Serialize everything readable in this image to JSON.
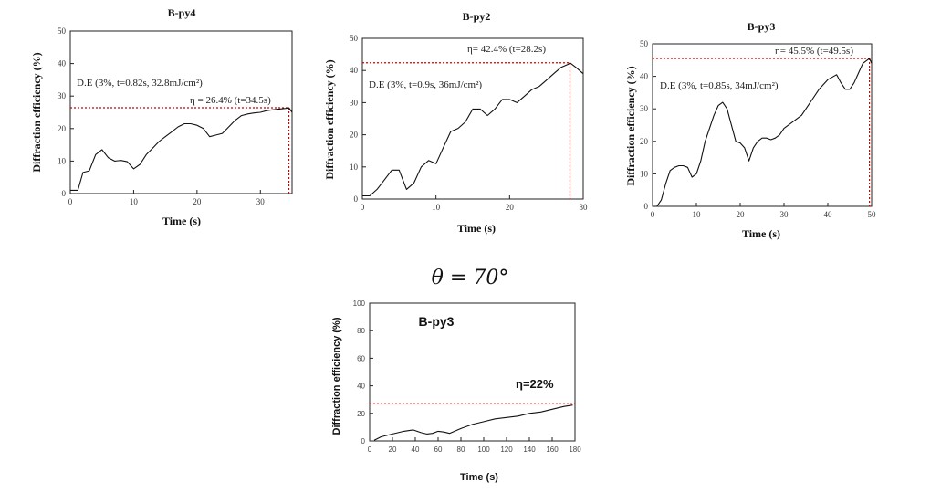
{
  "heading": "θ = 70°",
  "chart_data": [
    {
      "type": "line",
      "title": "B-py4",
      "xlabel": "Time (s)",
      "ylabel": "Diffraction efficiency (%)",
      "xlim": [
        0,
        35
      ],
      "ylim": [
        0,
        50
      ],
      "xticks": [
        0,
        10,
        20,
        30
      ],
      "yticks": [
        0,
        10,
        20,
        30,
        40,
        50
      ],
      "xtick_labels": [
        "0",
        "10",
        "20",
        "30"
      ],
      "ytick_labels": [
        "0",
        "10",
        "20",
        "30",
        "40",
        "50"
      ],
      "series": [
        {
          "x": [
            0,
            1.2,
            2,
            3,
            4,
            5,
            6,
            7,
            8,
            9,
            10,
            11,
            12,
            13,
            14,
            15,
            16,
            17,
            18,
            19,
            20,
            21,
            22,
            23,
            24,
            25,
            26,
            27,
            28,
            29,
            30,
            31,
            32,
            33,
            34,
            34.5,
            35
          ],
          "y": [
            1,
            1,
            6.5,
            7,
            12,
            13.5,
            11,
            10,
            10.2,
            9.8,
            7.6,
            9,
            12,
            14,
            16,
            17.5,
            19,
            20.5,
            21.5,
            21.5,
            21,
            20,
            17.5,
            18,
            18.5,
            20.5,
            22.5,
            24,
            24.5,
            24.8,
            25,
            25.5,
            25.8,
            26,
            26.2,
            26.4,
            25
          ]
        }
      ],
      "annotations": [
        "D.E (3%, t=0.82s, 32.8mJ/cm²)",
        "η = 26.4% (t=34.5s)"
      ],
      "reference_lines": [
        {
          "y": 26.4,
          "x_end": 34.5,
          "color": "#cc0000"
        }
      ]
    },
    {
      "type": "line",
      "title": "B-py2",
      "xlabel": "Time (s)",
      "ylabel": "Diffraction efficiency (%)",
      "xlim": [
        0,
        30
      ],
      "ylim": [
        0,
        50
      ],
      "xticks": [
        0,
        10,
        20,
        30
      ],
      "yticks": [
        0,
        10,
        20,
        30,
        40,
        50
      ],
      "xtick_labels": [
        "0",
        "10",
        "20",
        "30"
      ],
      "ytick_labels": [
        "0",
        "10",
        "20",
        "30",
        "40",
        "50"
      ],
      "series": [
        {
          "x": [
            0,
            1,
            2,
            3,
            4,
            5,
            6,
            7,
            8,
            9,
            10,
            11,
            12,
            13,
            14,
            15,
            16,
            17,
            18,
            19,
            20,
            21,
            22,
            23,
            24,
            25,
            26,
            27,
            28,
            28.2,
            29,
            30
          ],
          "y": [
            1,
            1,
            3,
            6,
            9,
            9,
            3,
            5,
            10,
            12,
            11,
            16,
            21,
            22,
            24,
            28,
            28,
            26,
            28,
            31,
            31,
            30,
            32,
            34,
            35,
            37,
            39,
            41,
            42,
            42.4,
            41,
            39
          ]
        }
      ],
      "annotations": [
        "D.E (3%, t=0.9s, 36mJ/cm²)",
        "η= 42.4% (t=28.2s)"
      ],
      "reference_lines": [
        {
          "y": 42.4,
          "x_end": 28.2,
          "color": "#cc0000"
        }
      ]
    },
    {
      "type": "line",
      "title": "B-py3",
      "xlabel": "Time (s)",
      "ylabel": "Diffraction efficiency (%)",
      "xlim": [
        0,
        50
      ],
      "ylim": [
        0,
        50
      ],
      "xticks": [
        0,
        10,
        20,
        30,
        40,
        50
      ],
      "yticks": [
        0,
        10,
        20,
        30,
        40,
        50
      ],
      "xtick_labels": [
        "0",
        "10",
        "20",
        "30",
        "40",
        "50"
      ],
      "ytick_labels": [
        "0",
        "10",
        "20",
        "30",
        "40",
        "50"
      ],
      "series": [
        {
          "x": [
            0,
            1,
            2,
            3,
            4,
            5,
            6,
            7,
            8,
            9,
            10,
            11,
            12,
            13,
            14,
            15,
            16,
            17,
            18,
            19,
            20,
            21,
            22,
            23,
            24,
            25,
            26,
            27,
            28,
            29,
            30,
            32,
            34,
            36,
            38,
            40,
            42,
            43,
            44,
            45,
            46,
            47,
            48,
            49,
            49.5,
            50
          ],
          "y": [
            0,
            0,
            2,
            7,
            11,
            12,
            12.5,
            12.5,
            12,
            9,
            10,
            14,
            20,
            24,
            28,
            31,
            32,
            30,
            25,
            20,
            19.5,
            18,
            14,
            18,
            20,
            21,
            21,
            20.5,
            21,
            22,
            24,
            26,
            28,
            32,
            36,
            39,
            40.5,
            38,
            36,
            36,
            38,
            41,
            44,
            45,
            45.5,
            44
          ]
        }
      ],
      "annotations": [
        "D.E (3%, t=0.85s, 34mJ/cm²)",
        "η= 45.5% (t=49.5s)"
      ],
      "reference_lines": [
        {
          "y": 45.5,
          "x_end": 49.5,
          "color": "#cc0000"
        }
      ]
    },
    {
      "type": "line",
      "title": "B-py3",
      "xlabel": "Time (s)",
      "ylabel": "Diffraction efficiency (%)",
      "xlim": [
        0,
        180
      ],
      "ylim": [
        0,
        100
      ],
      "xticks": [
        0,
        20,
        40,
        60,
        80,
        100,
        120,
        140,
        160,
        180
      ],
      "yticks": [
        0,
        20,
        40,
        60,
        80,
        100
      ],
      "xtick_labels": [
        "0",
        "20",
        "40",
        "60",
        "80",
        "100",
        "120",
        "140",
        "160",
        "180"
      ],
      "ytick_labels": [
        "0",
        "20",
        "40",
        "60",
        "80",
        "100"
      ],
      "series": [
        {
          "x": [
            4,
            10,
            20,
            30,
            38,
            45,
            50,
            55,
            60,
            65,
            70,
            80,
            90,
            100,
            110,
            120,
            130,
            140,
            150,
            160,
            170,
            178
          ],
          "y": [
            0.5,
            3,
            5,
            7,
            8,
            6,
            5,
            5.5,
            7,
            6.5,
            5.5,
            9,
            12,
            14,
            16,
            17,
            18,
            20,
            21,
            23,
            25,
            26
          ]
        }
      ],
      "annotations": [
        "η=22%"
      ],
      "reference_lines": [
        {
          "y": 27,
          "color": "#cc0000"
        }
      ]
    }
  ]
}
